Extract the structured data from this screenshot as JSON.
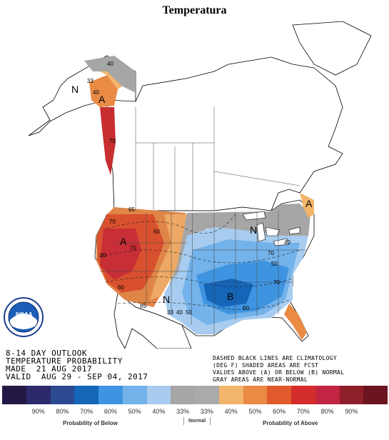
{
  "title": "Temperatura",
  "outlook": {
    "line1": "8-14 DAY OUTLOOK",
    "line2": "TEMPERATURE PROBABILITY",
    "line3": "MADE  21 AUG 2017",
    "line4": "VALID  AUG 29 - SEP 04, 2017"
  },
  "note": {
    "line1": "DASHED BLACK LINES ARE CLIMATOLOGY",
    "line2": "(DEG F) SHADED AREAS ARE FCST",
    "line3": "VALUES ABOVE (A) OR BELOW (B) NORMAL",
    "line4": "GRAY AREAS ARE NEAR-NORMAL"
  },
  "noaa_logo_text": "NOAA",
  "region_labels": {
    "alaska_n": "N",
    "alaska_a": "A",
    "west_a": "A",
    "great_lakes_n": "N",
    "texas_n": "N",
    "southeast_b": "B",
    "northeast_a": "A"
  },
  "contour_labels": [
    {
      "id": "ak-40-top",
      "text": "40"
    },
    {
      "id": "ak-33",
      "text": "33"
    },
    {
      "id": "ak-40",
      "text": "40"
    },
    {
      "id": "ak-70",
      "text": "70"
    },
    {
      "id": "w-65",
      "text": "65"
    },
    {
      "id": "w-70",
      "text": "70"
    },
    {
      "id": "w-60",
      "text": "60"
    },
    {
      "id": "w-70b",
      "text": "70"
    },
    {
      "id": "w-80",
      "text": "80"
    },
    {
      "id": "w-85",
      "text": "85"
    },
    {
      "id": "w-60b",
      "text": "60"
    },
    {
      "id": "s-33",
      "text": "33"
    },
    {
      "id": "s-40",
      "text": "40"
    },
    {
      "id": "s-50",
      "text": "50"
    },
    {
      "id": "se-60",
      "text": "60"
    },
    {
      "id": "se-70",
      "text": "70"
    },
    {
      "id": "se-50",
      "text": "50"
    },
    {
      "id": "ne-40",
      "text": "40"
    },
    {
      "id": "ne-70",
      "text": "70"
    }
  ],
  "legend": {
    "colors": [
      "#241845",
      "#2d2a6b",
      "#2c4a8f",
      "#1565b8",
      "#3e94e0",
      "#73b2ea",
      "#a7ccef",
      "#a6a6a6",
      "#aaaaaa",
      "#f2b56b",
      "#e98a45",
      "#e05a2b",
      "#d42d2b",
      "#c22541",
      "#8f1f2a",
      "#6a1520"
    ],
    "labels": [
      "90%",
      "80%",
      "70%",
      "60%",
      "50%",
      "40%",
      "33%",
      "33%",
      "40%",
      "50%",
      "60%",
      "70%",
      "80%",
      "90%"
    ],
    "below": "Probability of Below",
    "normal": "Normal",
    "above": "Probability of Above"
  }
}
